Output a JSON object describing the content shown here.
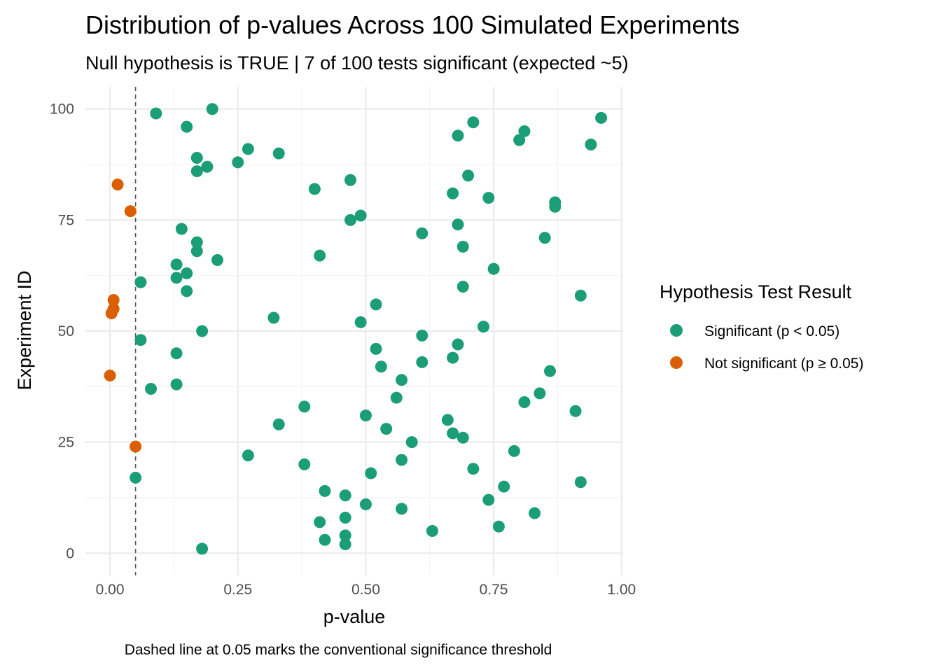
{
  "chart_data": {
    "type": "scatter",
    "title": "Distribution of p-values Across 100 Simulated Experiments",
    "subtitle": "Null hypothesis is TRUE | 7 of 100 tests significant (expected ~5)",
    "xlabel": "p-value",
    "ylabel": "Experiment ID",
    "caption": "Dashed line at 0.05 marks the conventional significance threshold",
    "xlim": [
      -0.048,
      1.003
    ],
    "ylim": [
      -5,
      105
    ],
    "x_ticks": [
      0,
      0.25,
      0.5,
      0.75,
      1
    ],
    "x_tick_labels": [
      "0.00",
      "0.25",
      "0.50",
      "0.75",
      "1.00"
    ],
    "y_ticks": [
      0,
      25,
      50,
      75,
      100
    ],
    "y_tick_labels": [
      "0",
      "25",
      "50",
      "75",
      "100"
    ],
    "threshold": 0.05,
    "grid": true,
    "legend": {
      "title": "Hypothesis Test Result",
      "position": "right"
    },
    "series": [
      {
        "name": "Significant (p < 0.05)",
        "color": "#1B9E77",
        "points": [
          [
            0.18,
            1
          ],
          [
            0.46,
            2
          ],
          [
            0.42,
            3
          ],
          [
            0.46,
            4
          ],
          [
            0.63,
            5
          ],
          [
            0.76,
            6
          ],
          [
            0.41,
            7
          ],
          [
            0.46,
            8
          ],
          [
            0.83,
            9
          ],
          [
            0.57,
            10
          ],
          [
            0.5,
            11
          ],
          [
            0.74,
            12
          ],
          [
            0.46,
            13
          ],
          [
            0.42,
            14
          ],
          [
            0.77,
            15
          ],
          [
            0.92,
            16
          ],
          [
            0.05,
            17
          ],
          [
            0.51,
            18
          ],
          [
            0.71,
            19
          ],
          [
            0.38,
            20
          ],
          [
            0.57,
            21
          ],
          [
            0.27,
            22
          ],
          [
            0.79,
            23
          ],
          [
            0.59,
            25
          ],
          [
            0.69,
            26
          ],
          [
            0.67,
            27
          ],
          [
            0.54,
            28
          ],
          [
            0.33,
            29
          ],
          [
            0.66,
            30
          ],
          [
            0.5,
            31
          ],
          [
            0.91,
            32
          ],
          [
            0.38,
            33
          ],
          [
            0.81,
            34
          ],
          [
            0.56,
            35
          ],
          [
            0.84,
            36
          ],
          [
            0.08,
            37
          ],
          [
            0.13,
            38
          ],
          [
            0.57,
            39
          ],
          [
            0.86,
            41
          ],
          [
            0.53,
            42
          ],
          [
            0.61,
            43
          ],
          [
            0.67,
            44
          ],
          [
            0.13,
            45
          ],
          [
            0.52,
            46
          ],
          [
            0.68,
            47
          ],
          [
            0.06,
            48
          ],
          [
            0.61,
            49
          ],
          [
            0.18,
            50
          ],
          [
            0.73,
            51
          ],
          [
            0.49,
            52
          ],
          [
            0.32,
            53
          ],
          [
            0.52,
            56
          ],
          [
            0.92,
            58
          ],
          [
            0.15,
            59
          ],
          [
            0.69,
            60
          ],
          [
            0.06,
            61
          ],
          [
            0.13,
            62
          ],
          [
            0.15,
            63
          ],
          [
            0.75,
            64
          ],
          [
            0.13,
            65
          ],
          [
            0.21,
            66
          ],
          [
            0.41,
            67
          ],
          [
            0.17,
            68
          ],
          [
            0.69,
            69
          ],
          [
            0.17,
            70
          ],
          [
            0.85,
            71
          ],
          [
            0.61,
            72
          ],
          [
            0.14,
            73
          ],
          [
            0.68,
            74
          ],
          [
            0.47,
            75
          ],
          [
            0.49,
            76
          ],
          [
            0.87,
            78
          ],
          [
            0.87,
            79
          ],
          [
            0.74,
            80
          ],
          [
            0.67,
            81
          ],
          [
            0.4,
            82
          ],
          [
            0.47,
            84
          ],
          [
            0.7,
            85
          ],
          [
            0.17,
            86
          ],
          [
            0.19,
            87
          ],
          [
            0.25,
            88
          ],
          [
            0.17,
            89
          ],
          [
            0.33,
            90
          ],
          [
            0.27,
            91
          ],
          [
            0.94,
            92
          ],
          [
            0.8,
            93
          ],
          [
            0.68,
            94
          ],
          [
            0.81,
            95
          ],
          [
            0.15,
            96
          ],
          [
            0.71,
            97
          ],
          [
            0.96,
            98
          ],
          [
            0.09,
            99
          ],
          [
            0.2,
            100
          ]
        ]
      },
      {
        "name": "Not significant (p ≥ 0.05)",
        "color": "#D95F02",
        "points": [
          [
            0.05,
            24
          ],
          [
            0.0,
            40
          ],
          [
            0.003,
            54
          ],
          [
            0.007,
            55
          ],
          [
            0.007,
            57
          ],
          [
            0.04,
            77
          ],
          [
            0.015,
            83
          ]
        ]
      }
    ]
  }
}
